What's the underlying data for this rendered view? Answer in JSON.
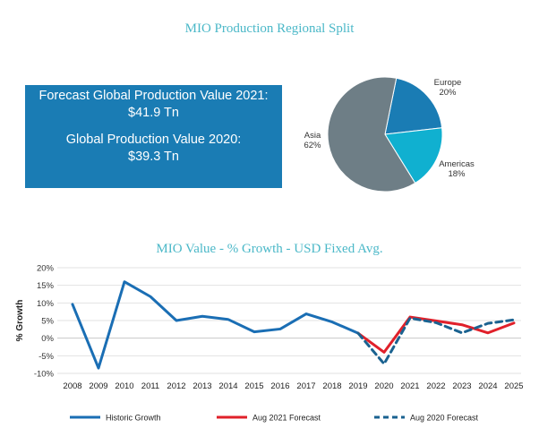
{
  "info_box": {
    "forecast_label": "Forecast Global Production Value 2021:",
    "forecast_value": "$41.9 Tn",
    "current_label": "Global Production Value 2020:",
    "current_value": "$39.3 Tn"
  },
  "chart_data": [
    {
      "type": "pie",
      "title": "MIO Production Regional Split",
      "slices": [
        {
          "label": "Europe",
          "value": 20,
          "display": "20%",
          "color": "#1a7cb4"
        },
        {
          "label": "Americas",
          "value": 18,
          "display": "18%",
          "color": "#10b0d0"
        },
        {
          "label": "Asia",
          "value": 62,
          "display": "62%",
          "color": "#6e7e86"
        }
      ]
    },
    {
      "type": "line",
      "title": "MIO Value - % Growth - USD Fixed Avg.",
      "ylabel": "% Growth",
      "xlabel": "",
      "ylim": [
        -10,
        20
      ],
      "yticks": [
        20,
        15,
        10,
        5,
        0,
        -5,
        -10
      ],
      "ytick_labels": [
        "20%",
        "15%",
        "10%",
        "5%",
        "0%",
        "-5%",
        "-10%"
      ],
      "categories": [
        "2008",
        "2009",
        "2010",
        "2011",
        "2012",
        "2013",
        "2014",
        "2015",
        "2016",
        "2017",
        "2018",
        "2019",
        "2020",
        "2021",
        "2022",
        "2023",
        "2024",
        "2025"
      ],
      "series": [
        {
          "name": "Historic Growth",
          "color": "#1a6eb4",
          "dash": "solid",
          "x": [
            "2008",
            "2009",
            "2010",
            "2011",
            "2012",
            "2013",
            "2014",
            "2015",
            "2016",
            "2017",
            "2018",
            "2019"
          ],
          "values": [
            9.6,
            -8.5,
            16,
            11.8,
            5,
            6.2,
            5.3,
            1.8,
            2.6,
            6.9,
            4.6,
            1.4
          ]
        },
        {
          "name": "Aug 2021 Forecast",
          "color": "#e0202a",
          "dash": "solid",
          "x": [
            "2019",
            "2020",
            "2021",
            "2022",
            "2023",
            "2024",
            "2025"
          ],
          "values": [
            1.4,
            -4,
            6,
            4.9,
            3.8,
            1.5,
            4.3
          ]
        },
        {
          "name": "Aug 2020 Forecast",
          "color": "#1a6290",
          "dash": "dashed",
          "x": [
            "2019",
            "2020",
            "2021",
            "2022",
            "2023",
            "2024",
            "2025"
          ],
          "values": [
            1.4,
            -7.3,
            5.7,
            4.4,
            1.5,
            4.2,
            5.2
          ]
        }
      ]
    }
  ]
}
